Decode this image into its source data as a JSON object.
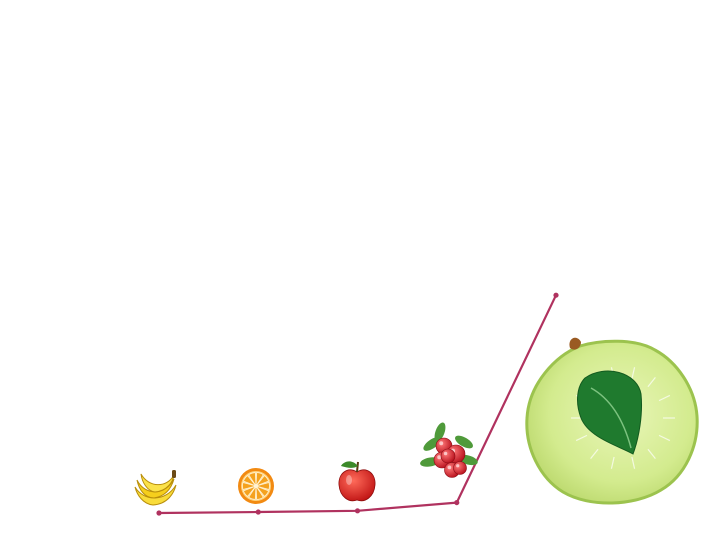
{
  "chart_data": {
    "type": "line",
    "title": "",
    "xlabel": "",
    "ylabel": "",
    "grid": false,
    "legend": "none",
    "x": [
      "banana",
      "orange",
      "apple",
      "cranberry",
      "green apple"
    ],
    "series": [
      {
        "values": [
          0,
          0.4,
          0.9,
          4.3,
          90
        ]
      }
    ],
    "ylim": [
      0,
      100
    ],
    "line_color": "#b0325f",
    "markers": [
      "banana-icon",
      "orange-icon",
      "apple-icon",
      "cranberry-icon",
      "green-apple-icon"
    ]
  }
}
